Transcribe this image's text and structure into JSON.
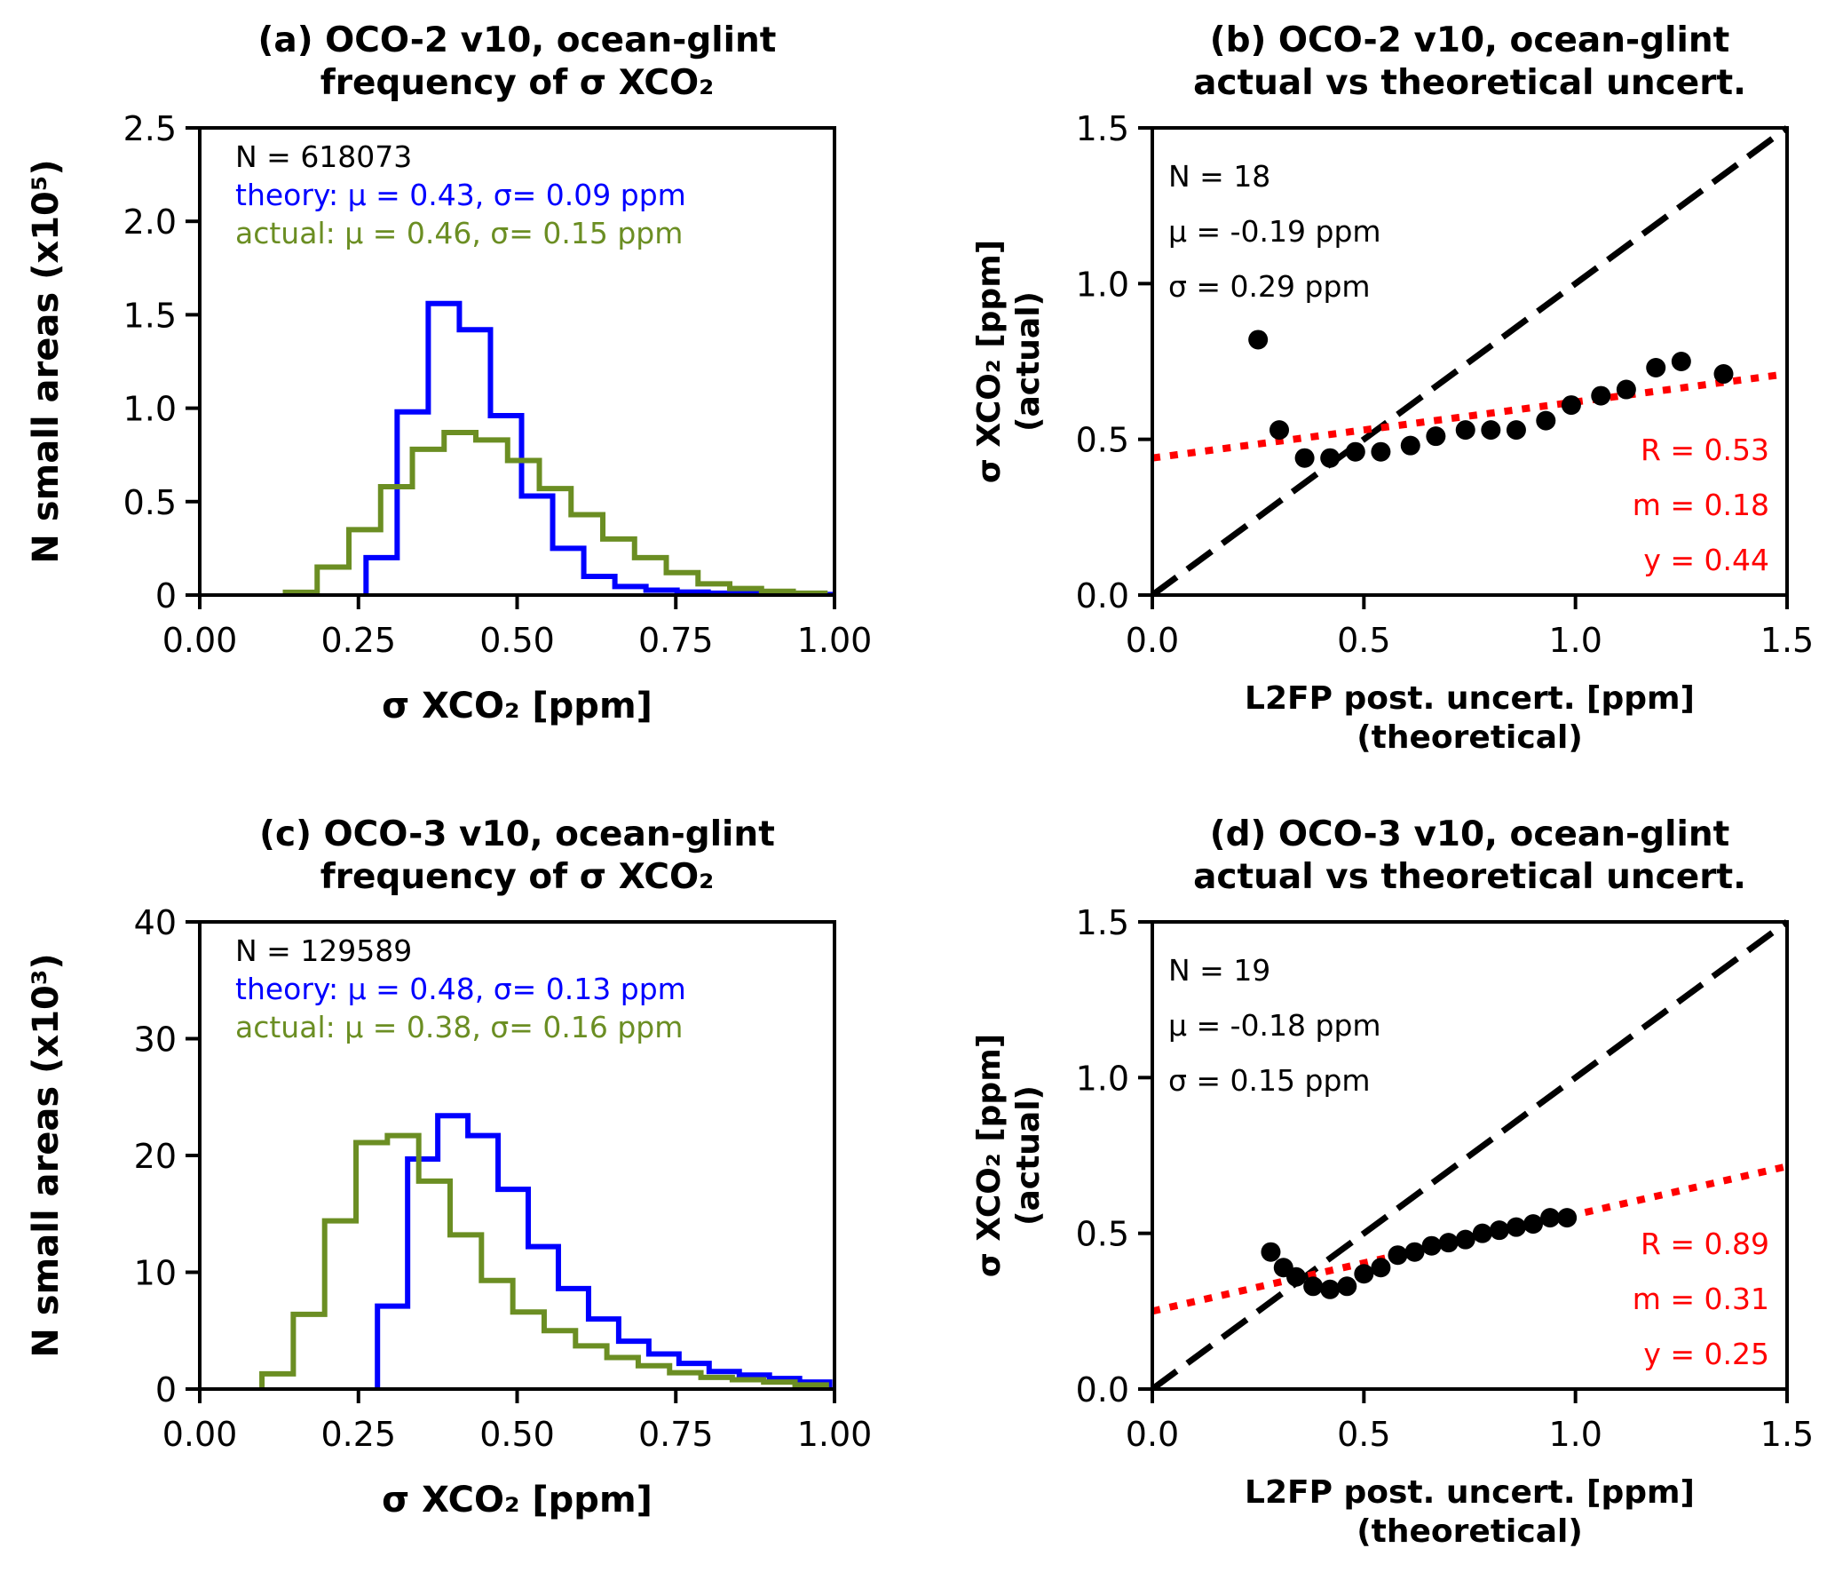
{
  "chart_data": [
    {
      "id": "a",
      "type": "histogram",
      "title": [
        "(a) OCO-2 v10, ocean-glint",
        "frequency of σ XCO₂"
      ],
      "xlabel": "σ XCO₂ [ppm]",
      "ylabel": "N small areas (x10⁵)",
      "xlim": [
        0,
        1.0
      ],
      "ylim": [
        0,
        2.5
      ],
      "xticks": [
        0,
        0.25,
        0.5,
        0.75,
        1.0
      ],
      "xtick_labels": [
        "0.00",
        "0.25",
        "0.50",
        "0.75",
        "1.00"
      ],
      "yticks": [
        0,
        0.5,
        1.0,
        1.5,
        2.0,
        2.5
      ],
      "ytick_labels": [
        "0",
        "0.5",
        "1.0",
        "1.5",
        "2.0",
        "2.5"
      ],
      "annotations": [
        {
          "text": "N = 618073",
          "color": "#000000"
        },
        {
          "text": "theory: μ = 0.43, σ= 0.09 ppm",
          "color": "#0000ff"
        },
        {
          "text": "actual: μ = 0.46, σ= 0.15 ppm",
          "color": "#6b8e23"
        }
      ],
      "series": [
        {
          "name": "theory",
          "color": "#0000ff",
          "bin_start": 0.262,
          "bin_width": 0.049,
          "values": [
            0.2,
            0.98,
            1.56,
            1.42,
            0.96,
            0.53,
            0.25,
            0.1,
            0.046,
            0.026,
            0.016,
            0.01,
            0.007,
            0.005,
            0.003
          ]
        },
        {
          "name": "actual",
          "color": "#6b8e23",
          "bin_start": 0.135,
          "bin_width": 0.05,
          "values": [
            0.015,
            0.15,
            0.35,
            0.58,
            0.78,
            0.87,
            0.83,
            0.72,
            0.57,
            0.43,
            0.3,
            0.2,
            0.12,
            0.06,
            0.035,
            0.02,
            0.01
          ]
        }
      ]
    },
    {
      "id": "b",
      "type": "scatter",
      "title": [
        "(b) OCO-2 v10, ocean-glint",
        "actual vs theoretical uncert."
      ],
      "xlabel": [
        "L2FP post. uncert. [ppm]",
        "(theoretical)"
      ],
      "ylabel": [
        "σ XCO₂ [ppm]",
        "(actual)"
      ],
      "xlim": [
        0,
        1.5
      ],
      "ylim": [
        0,
        1.5
      ],
      "xticks": [
        0,
        0.5,
        1.0,
        1.5
      ],
      "xtick_labels": [
        "0.0",
        "0.5",
        "1.0",
        "1.5"
      ],
      "yticks": [
        0,
        0.5,
        1.0,
        1.5
      ],
      "ytick_labels": [
        "0.0",
        "0.5",
        "1.0",
        "1.5"
      ],
      "stats": [
        {
          "text": "N = 18",
          "color": "#000000"
        },
        {
          "text": "μ = -0.19 ppm",
          "color": "#000000"
        },
        {
          "text": "σ = 0.29 ppm",
          "color": "#000000"
        }
      ],
      "fit_stats": [
        {
          "text": "R = 0.53",
          "color": "#ff0000"
        },
        {
          "text": "m = 0.18",
          "color": "#ff0000"
        },
        {
          "text": "y = 0.44",
          "color": "#ff0000"
        }
      ],
      "one_to_one_line": {
        "style": "dashed",
        "color": "#000000"
      },
      "fit_line": {
        "slope": 0.18,
        "intercept": 0.44,
        "style": "dotted",
        "color": "#ff0000"
      },
      "x": [
        0.25,
        0.3,
        0.36,
        0.42,
        0.48,
        0.54,
        0.61,
        0.67,
        0.74,
        0.8,
        0.86,
        0.93,
        0.99,
        1.06,
        1.12,
        1.19,
        1.25,
        1.35
      ],
      "y": [
        0.82,
        0.53,
        0.44,
        0.44,
        0.46,
        0.46,
        0.48,
        0.51,
        0.53,
        0.53,
        0.53,
        0.56,
        0.61,
        0.64,
        0.66,
        0.73,
        0.75,
        0.71
      ]
    },
    {
      "id": "c",
      "type": "histogram",
      "title": [
        "(c) OCO-3 v10, ocean-glint",
        "frequency of σ XCO₂"
      ],
      "xlabel": "σ XCO₂ [ppm]",
      "ylabel": "N small areas (x10³)",
      "xlim": [
        0,
        1.0
      ],
      "ylim": [
        0,
        40
      ],
      "xticks": [
        0,
        0.25,
        0.5,
        0.75,
        1.0
      ],
      "xtick_labels": [
        "0.00",
        "0.25",
        "0.50",
        "0.75",
        "1.00"
      ],
      "yticks": [
        0,
        10,
        20,
        30,
        40
      ],
      "ytick_labels": [
        "0",
        "10",
        "20",
        "30",
        "40"
      ],
      "annotations": [
        {
          "text": "N = 129589",
          "color": "#000000"
        },
        {
          "text": "theory: μ = 0.48, σ= 0.13 ppm",
          "color": "#0000ff"
        },
        {
          "text": "actual: μ = 0.38, σ= 0.16 ppm",
          "color": "#6b8e23"
        }
      ],
      "series": [
        {
          "name": "theory",
          "color": "#0000ff",
          "bin_start": 0.28,
          "bin_width": 0.0475,
          "values": [
            7.1,
            19.7,
            23.4,
            21.7,
            17.1,
            12.2,
            8.6,
            6.0,
            4.1,
            3.0,
            2.2,
            1.5,
            1.2,
            0.9,
            0.6
          ]
        },
        {
          "name": "actual",
          "color": "#6b8e23",
          "bin_start": 0.098,
          "bin_width": 0.0494,
          "values": [
            1.3,
            6.4,
            14.4,
            21.1,
            21.7,
            17.8,
            13.2,
            9.3,
            6.6,
            5.0,
            3.7,
            2.7,
            2.0,
            1.4,
            1.0,
            0.8,
            0.6,
            0.35
          ]
        }
      ]
    },
    {
      "id": "d",
      "type": "scatter",
      "title": [
        "(d) OCO-3 v10, ocean-glint",
        "actual vs theoretical uncert."
      ],
      "xlabel": [
        "L2FP post. uncert. [ppm]",
        "(theoretical)"
      ],
      "ylabel": [
        "σ XCO₂ [ppm]",
        "(actual)"
      ],
      "xlim": [
        0,
        1.5
      ],
      "ylim": [
        0,
        1.5
      ],
      "xticks": [
        0,
        0.5,
        1.0,
        1.5
      ],
      "xtick_labels": [
        "0.0",
        "0.5",
        "1.0",
        "1.5"
      ],
      "yticks": [
        0,
        0.5,
        1.0,
        1.5
      ],
      "ytick_labels": [
        "0.0",
        "0.5",
        "1.0",
        "1.5"
      ],
      "stats": [
        {
          "text": "N = 19",
          "color": "#000000"
        },
        {
          "text": "μ = -0.18 ppm",
          "color": "#000000"
        },
        {
          "text": "σ = 0.15 ppm",
          "color": "#000000"
        }
      ],
      "fit_stats": [
        {
          "text": "R = 0.89",
          "color": "#ff0000"
        },
        {
          "text": "m = 0.31",
          "color": "#ff0000"
        },
        {
          "text": "y = 0.25",
          "color": "#ff0000"
        }
      ],
      "one_to_one_line": {
        "style": "dashed",
        "color": "#000000"
      },
      "fit_line": {
        "slope": 0.31,
        "intercept": 0.25,
        "style": "dotted",
        "color": "#ff0000"
      },
      "x": [
        0.28,
        0.31,
        0.34,
        0.38,
        0.42,
        0.46,
        0.5,
        0.54,
        0.58,
        0.62,
        0.66,
        0.7,
        0.74,
        0.78,
        0.82,
        0.86,
        0.9,
        0.94,
        0.98
      ],
      "y": [
        0.44,
        0.39,
        0.36,
        0.33,
        0.32,
        0.33,
        0.37,
        0.39,
        0.43,
        0.44,
        0.46,
        0.47,
        0.48,
        0.5,
        0.51,
        0.52,
        0.53,
        0.55,
        0.55
      ]
    }
  ]
}
